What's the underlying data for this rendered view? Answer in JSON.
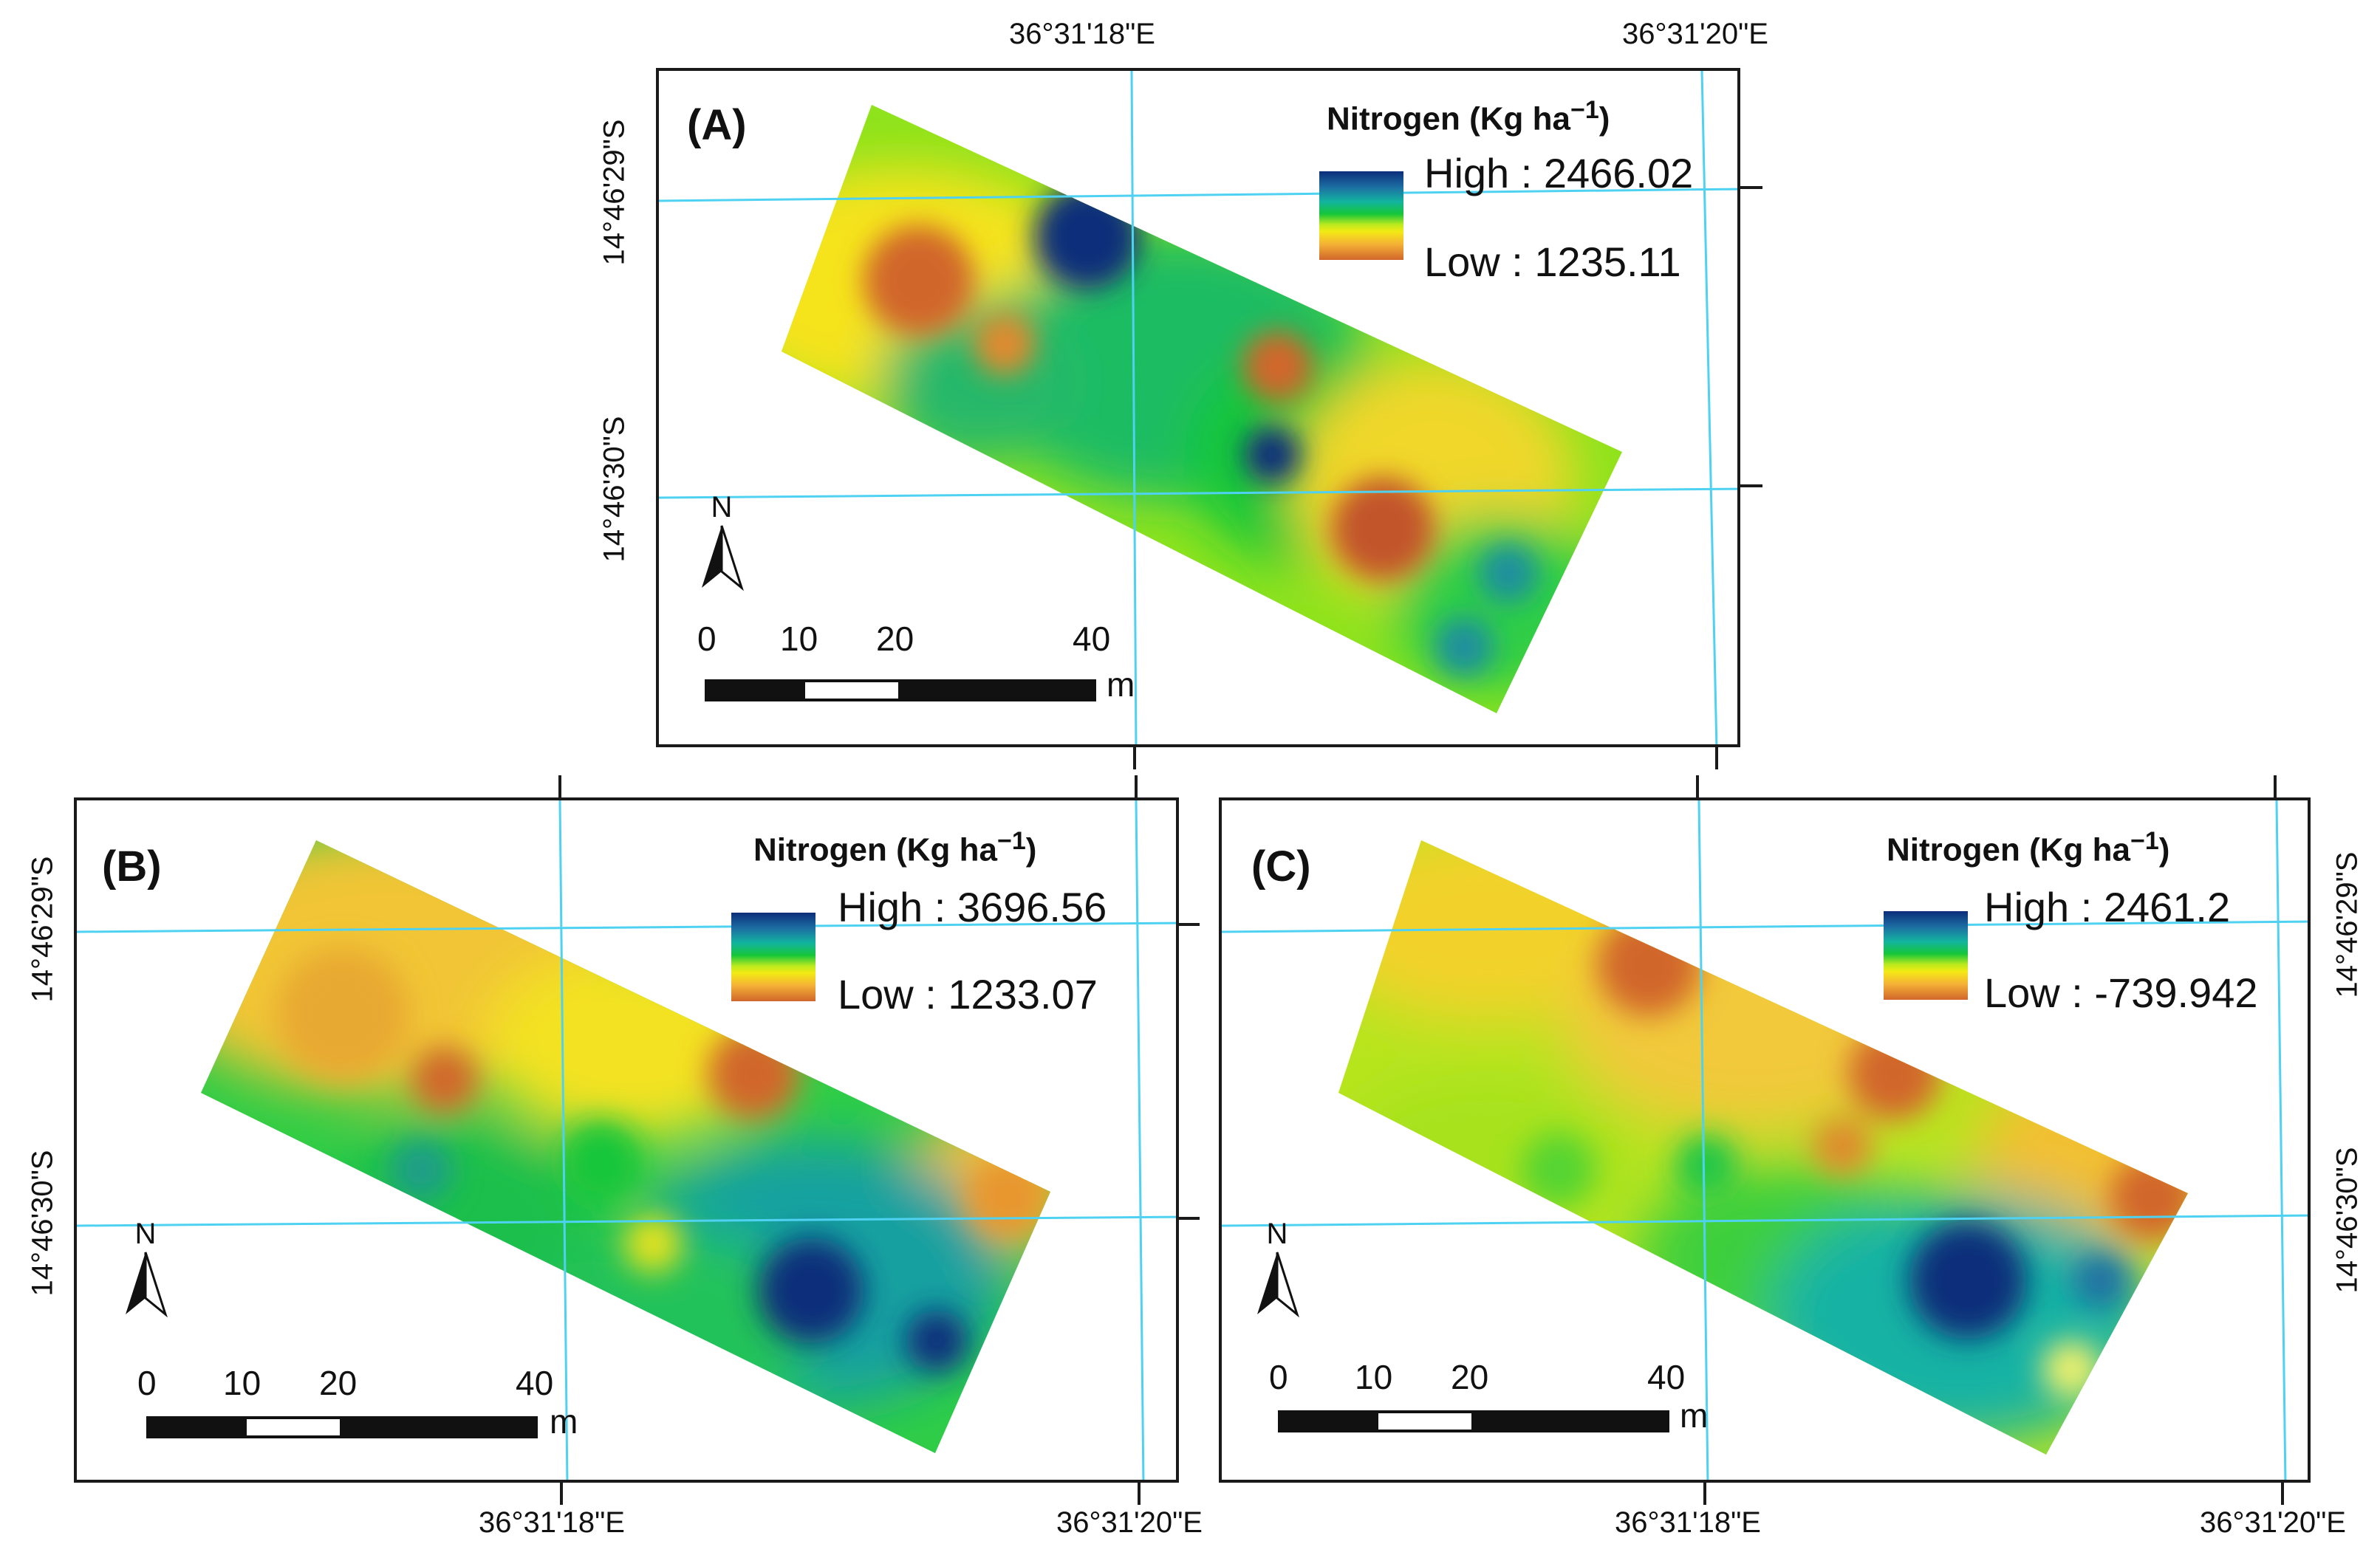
{
  "panels": {
    "a": {
      "label": "(A)",
      "legend_title": "Nitrogen (Kg ha",
      "legend_sup": "−1",
      "legend_close": ")",
      "high_label": "High : 2466.02",
      "low_label": "Low : 1235.11"
    },
    "b": {
      "label": "(B)",
      "legend_title": "Nitrogen (Kg ha",
      "legend_sup": "−1",
      "legend_close": ")",
      "high_label": "High : 3696.56",
      "low_label": "Low : 1233.07"
    },
    "c": {
      "label": "(C)",
      "legend_title": "Nitrogen (Kg ha",
      "legend_sup": "−1",
      "legend_close": ")",
      "high_label": "High : 2461.2",
      "low_label": "Low : -739.942"
    }
  },
  "coordinates": {
    "lon_1": "36°31'18\"E",
    "lon_2": "36°31'20\"E",
    "lat_1": "14°46'29\"S",
    "lat_2": "14°46'30\"S"
  },
  "scale": {
    "ticks": [
      "0",
      "10",
      "20",
      "40"
    ],
    "unit": "m",
    "north": "N"
  },
  "colors": {
    "ramp_high": "#0b2d7a",
    "ramp_mid": "#15c63a",
    "ramp_yellow": "#f3ea14",
    "ramp_low": "#d1662b",
    "graticule": "#4fd2f2"
  }
}
